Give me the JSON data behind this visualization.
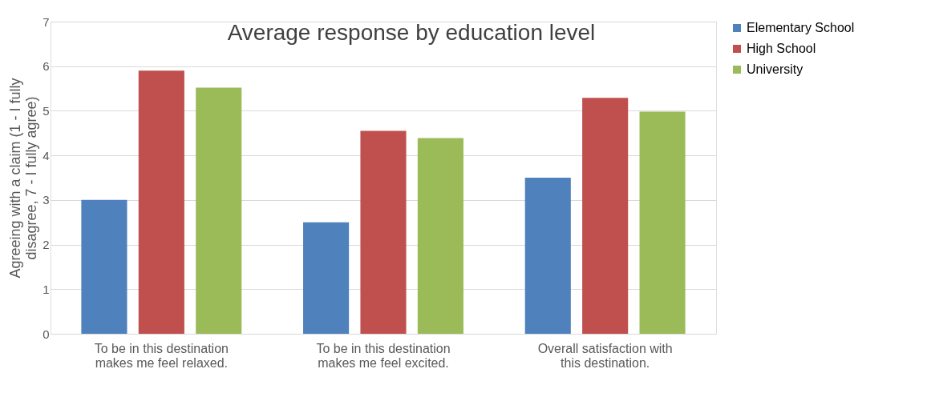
{
  "chart_data": {
    "type": "bar",
    "title": "Average response by education level",
    "ylabel": "Agreeing with a claim (1 - I fully disagree, 7 - I fully agree)",
    "categories": [
      "To be in this destination makes me feel relaxed.",
      "To be in this destination makes me feel excited.",
      "Overall satisfaction with this destination."
    ],
    "series": [
      {
        "name": "Elementary School",
        "color": "#4f81bd",
        "values": [
          3.0,
          2.5,
          3.5
        ]
      },
      {
        "name": "High School",
        "color": "#c0504d",
        "values": [
          5.9,
          4.55,
          5.29
        ]
      },
      {
        "name": "University",
        "color": "#9bbb59",
        "values": [
          5.52,
          4.39,
          4.98
        ]
      }
    ],
    "ylim": [
      0,
      7
    ],
    "yticks": [
      0,
      1,
      2,
      3,
      4,
      5,
      6,
      7
    ],
    "grid": "y",
    "legend": "right"
  }
}
